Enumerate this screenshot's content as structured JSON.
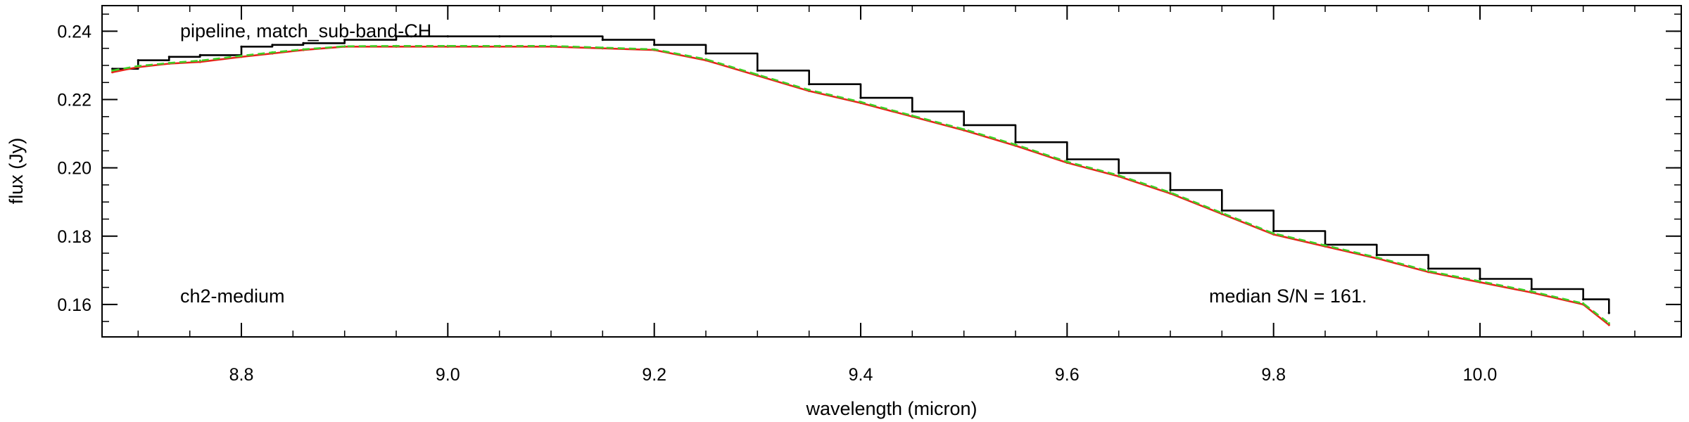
{
  "chart_data": {
    "type": "line",
    "xlabel": "wavelength (micron)",
    "ylabel": "flux (Jy)",
    "xlim": [
      8.665,
      10.195
    ],
    "ylim": [
      0.1505,
      0.2475
    ],
    "x_ticks": [
      8.8,
      9.0,
      9.2,
      9.4,
      9.6,
      9.8,
      10.0
    ],
    "x_tick_labels": [
      "8.8",
      "9.0",
      "9.2",
      "9.4",
      "9.6",
      "9.8",
      "10.0"
    ],
    "y_ticks": [
      0.16,
      0.18,
      0.2,
      0.22,
      0.24
    ],
    "y_tick_labels": [
      "0.16",
      "0.18",
      "0.20",
      "0.22",
      "0.24"
    ],
    "x_minor_step": 0.05,
    "y_minor_step": 0.005,
    "grid": false,
    "annotations": {
      "top_left": "pipeline, match_sub-band-CH",
      "bottom_left": "ch2-medium",
      "bottom_right": "median S/N = 161."
    },
    "series": [
      {
        "style": "step",
        "color": "#000000",
        "x": [
          8.675,
          8.7,
          8.73,
          8.76,
          8.8,
          8.83,
          8.86,
          8.9,
          8.95,
          9.0,
          9.05,
          9.1,
          9.15,
          9.2,
          9.25,
          9.3,
          9.35,
          9.4,
          9.45,
          9.5,
          9.55,
          9.6,
          9.65,
          9.7,
          9.75,
          9.8,
          9.85,
          9.9,
          9.95,
          10.0,
          10.05,
          10.1,
          10.125
        ],
        "y": [
          0.229,
          0.2315,
          0.2325,
          0.233,
          0.2355,
          0.236,
          0.2365,
          0.2375,
          0.2385,
          0.2385,
          0.2385,
          0.2385,
          0.2375,
          0.236,
          0.2335,
          0.2285,
          0.2245,
          0.2205,
          0.2165,
          0.2125,
          0.2075,
          0.2025,
          0.1985,
          0.1935,
          0.1875,
          0.1815,
          0.1775,
          0.1745,
          0.1705,
          0.1675,
          0.1645,
          0.1615,
          0.1575
        ]
      },
      {
        "style": "line",
        "color": "#e8221a",
        "x": [
          8.675,
          8.7,
          8.73,
          8.76,
          8.8,
          8.83,
          8.86,
          8.9,
          8.95,
          9.0,
          9.05,
          9.1,
          9.15,
          9.2,
          9.25,
          9.3,
          9.35,
          9.4,
          9.45,
          9.5,
          9.55,
          9.6,
          9.65,
          9.7,
          9.75,
          9.8,
          9.85,
          9.9,
          9.95,
          10.0,
          10.05,
          10.1,
          10.125
        ],
        "y": [
          0.228,
          0.2295,
          0.2305,
          0.231,
          0.2325,
          0.2335,
          0.2345,
          0.2355,
          0.2355,
          0.2355,
          0.2355,
          0.2355,
          0.235,
          0.2345,
          0.2315,
          0.227,
          0.2225,
          0.219,
          0.215,
          0.211,
          0.2065,
          0.2015,
          0.1975,
          0.1925,
          0.1865,
          0.1805,
          0.177,
          0.1735,
          0.1695,
          0.1665,
          0.1635,
          0.16,
          0.154
        ]
      },
      {
        "style": "line",
        "color": "#3fcf25",
        "x": [
          8.675,
          8.7,
          8.73,
          8.76,
          8.8,
          8.83,
          8.86,
          8.9,
          8.95,
          9.0,
          9.05,
          9.1,
          9.15,
          9.2,
          9.25,
          9.3,
          9.35,
          9.4,
          9.45,
          9.5,
          9.55,
          9.6,
          9.65,
          9.7,
          9.75,
          9.8,
          9.85,
          9.9,
          9.95,
          10.0,
          10.05,
          10.1,
          10.125
        ],
        "y": [
          0.2285,
          0.2298,
          0.2307,
          0.2314,
          0.2328,
          0.2338,
          0.2347,
          0.2356,
          0.2357,
          0.2357,
          0.2357,
          0.2357,
          0.2352,
          0.2347,
          0.2318,
          0.2273,
          0.2228,
          0.2193,
          0.2153,
          0.2113,
          0.2068,
          0.2018,
          0.1978,
          0.1928,
          0.1868,
          0.1808,
          0.1773,
          0.1738,
          0.1698,
          0.1668,
          0.1638,
          0.1603,
          0.1545
        ]
      }
    ]
  }
}
